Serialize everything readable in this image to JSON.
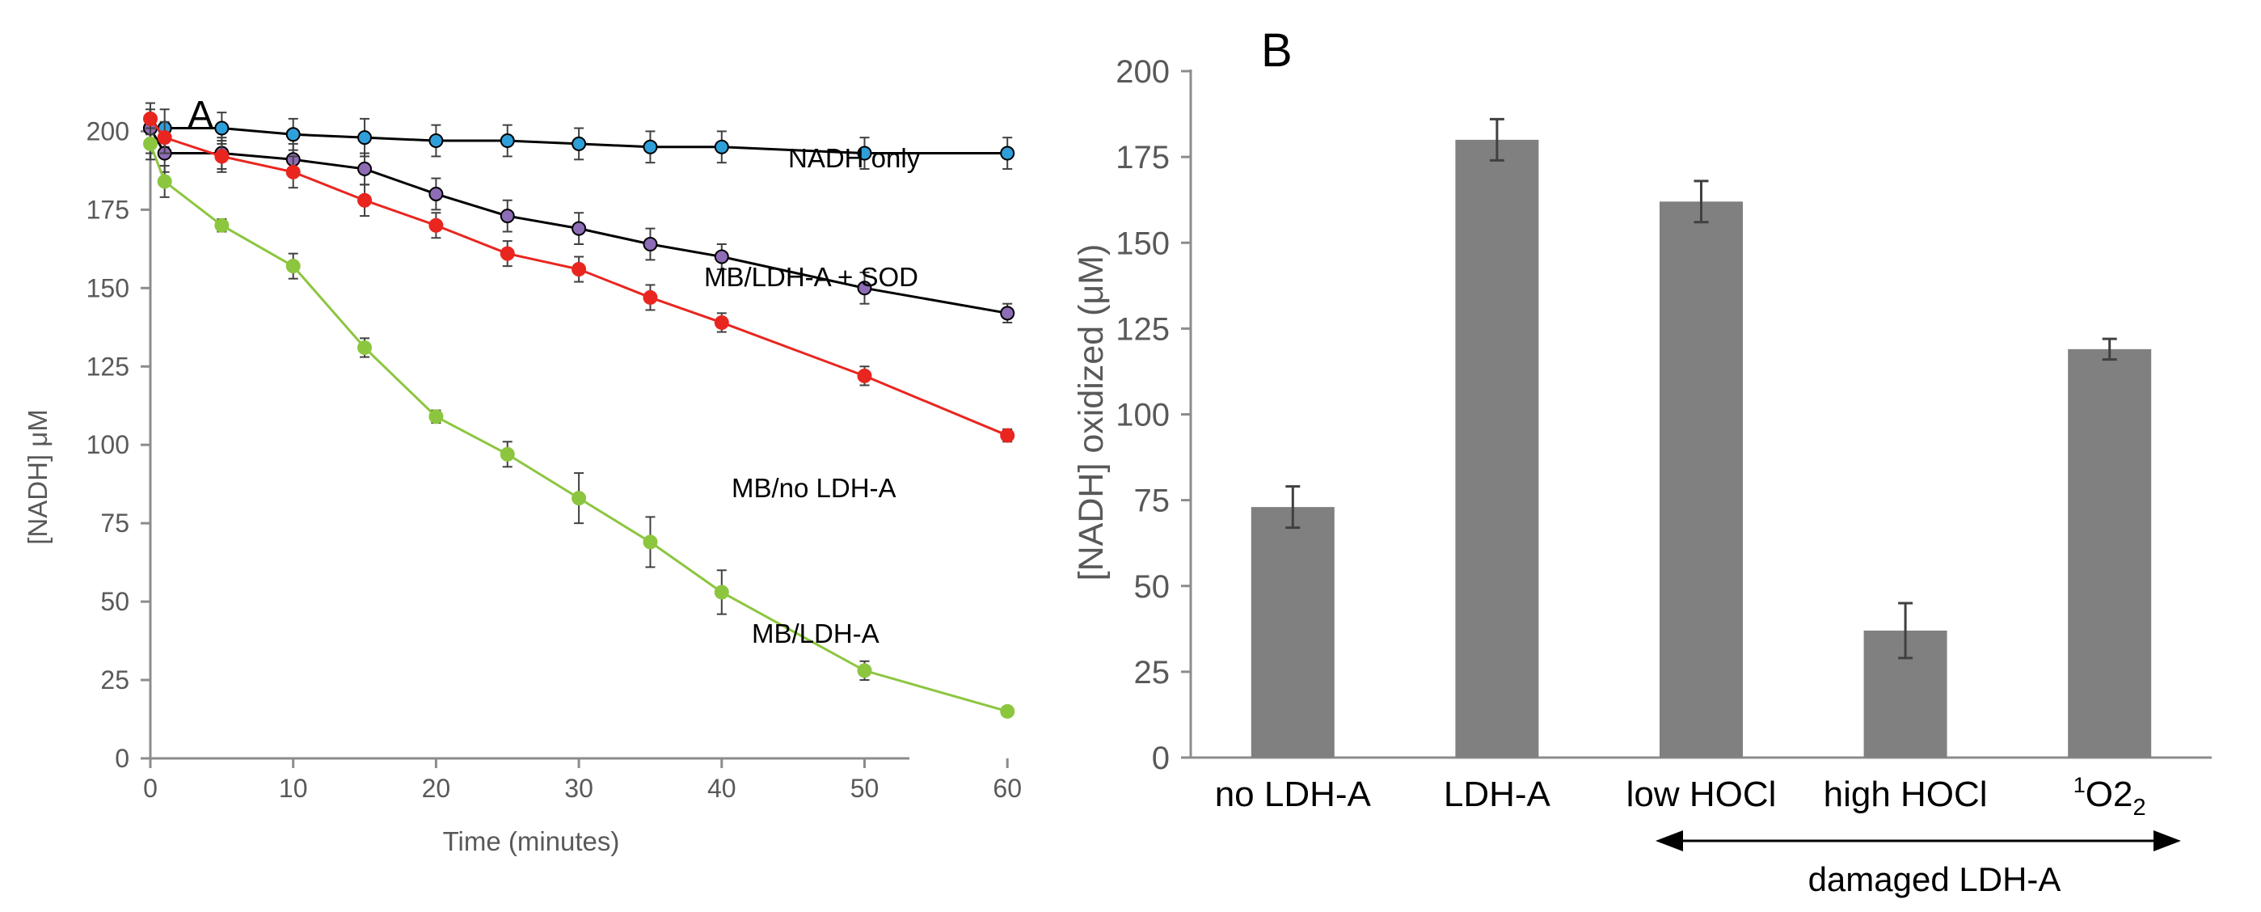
{
  "colors": {
    "nadh_only": "#2F9FDA",
    "mb_ldh_sod": "#8E6CB6",
    "mb_no_ldh": "#E8261F",
    "mb_ldh": "#8CC63F",
    "bar": "#808080",
    "axis": "#8C8C8C",
    "tick_text": "#595959",
    "label_text": "#000000"
  },
  "chart_data": [
    {
      "panel": "A",
      "type": "line",
      "title": "A",
      "xlabel": "Time (minutes)",
      "ylabel": "[NADH] μM",
      "xlim": [
        0,
        60
      ],
      "ylim": [
        0,
        200
      ],
      "xticks": [
        "0",
        "10",
        "20",
        "30",
        "40",
        "50",
        "60"
      ],
      "yticks": [
        "0",
        "25",
        "50",
        "75",
        "100",
        "125",
        "150",
        "175",
        "200"
      ],
      "grid": false,
      "legend": "inline labels",
      "series": [
        {
          "name": "NADH only",
          "color_key": "nadh_only",
          "x": [
            0,
            1,
            5,
            10,
            15,
            20,
            25,
            30,
            35,
            40,
            50,
            60
          ],
          "y": [
            201,
            201,
            201,
            199,
            198,
            197,
            197,
            196,
            195,
            195,
            193,
            193
          ],
          "err": [
            6,
            6,
            5,
            5,
            6,
            5,
            5,
            5,
            5,
            5,
            5,
            5
          ]
        },
        {
          "name": "MB/LDH-A + SOD",
          "color_key": "mb_ldh_sod",
          "x": [
            0,
            1,
            5,
            10,
            15,
            20,
            25,
            30,
            35,
            40,
            50,
            60
          ],
          "y": [
            201,
            193,
            193,
            191,
            188,
            180,
            173,
            169,
            164,
            160,
            150,
            142
          ],
          "err": [
            8,
            6,
            5,
            5,
            5,
            5,
            5,
            5,
            5,
            4,
            5,
            3
          ]
        },
        {
          "name": "MB/no LDH-A",
          "color_key": "mb_no_ldh",
          "x": [
            0,
            1,
            5,
            10,
            15,
            20,
            25,
            30,
            35,
            40,
            50,
            60
          ],
          "y": [
            204,
            198,
            192,
            187,
            178,
            170,
            161,
            156,
            147,
            139,
            122,
            103
          ],
          "err": [
            5,
            5,
            5,
            5,
            5,
            4,
            4,
            4,
            4,
            3,
            3,
            2
          ]
        },
        {
          "name": "MB/LDH-A",
          "color_key": "mb_ldh",
          "x": [
            0,
            1,
            5,
            10,
            15,
            20,
            25,
            30,
            35,
            40,
            50,
            60
          ],
          "y": [
            196,
            184,
            170,
            157,
            131,
            109,
            97,
            83,
            69,
            53,
            28,
            15
          ],
          "err": [
            5,
            5,
            2,
            4,
            3,
            2,
            4,
            8,
            8,
            7,
            3,
            1
          ]
        }
      ]
    },
    {
      "panel": "B",
      "type": "bar",
      "title": "B",
      "xlabel": "",
      "ylabel": "[NADH] oxidized (μM)",
      "ylim": [
        0,
        200
      ],
      "yticks": [
        "0",
        "25",
        "50",
        "75",
        "100",
        "125",
        "150",
        "175",
        "200"
      ],
      "grid": false,
      "categories": [
        "no LDH-A",
        "LDH-A",
        "low HOCl",
        "high HOCl",
        "O2"
      ],
      "last_category_superscript": "1",
      "last_category_subscript": "2",
      "values": [
        73,
        180,
        162,
        37,
        119
      ],
      "errors": [
        6,
        6,
        6,
        8,
        3
      ],
      "bracket_label": "damaged LDH-A"
    }
  ]
}
